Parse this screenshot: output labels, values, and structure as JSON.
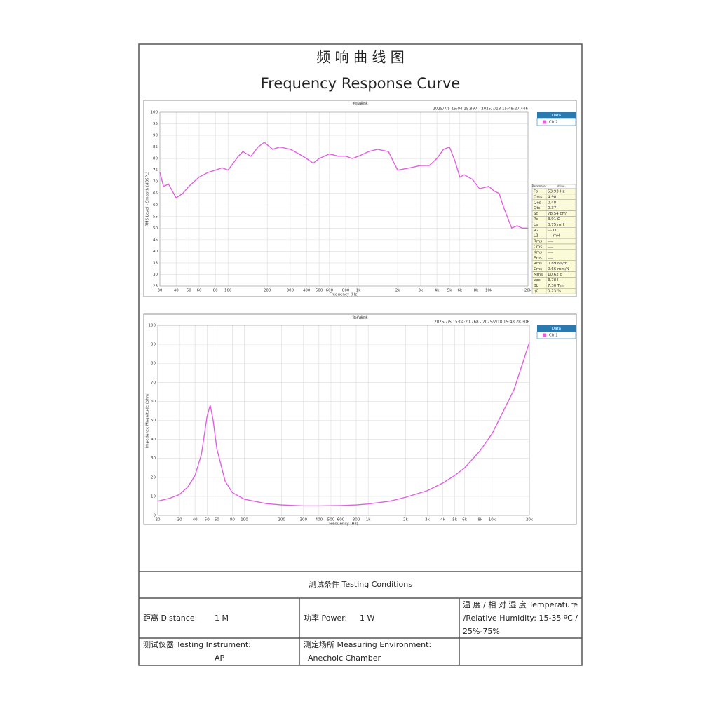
{
  "header": {
    "title_cn": "频 响 曲 线 图",
    "title_en": "Frequency Response Curve"
  },
  "chart_data": [
    {
      "type": "line",
      "title": "响应曲线",
      "timestamp": "2025/7/5 15:04:19.897 - 2025/7/18 15:48:27.446",
      "x_label": "Frequency (Hz)",
      "y_label": "RMS Level - Smooth (dBSPL)",
      "xscale": "log",
      "grid": true,
      "legend_title": "Data",
      "x": [
        30,
        32,
        35,
        40,
        45,
        50,
        60,
        70,
        80,
        90,
        100,
        120,
        130,
        150,
        170,
        190,
        220,
        250,
        300,
        350,
        400,
        450,
        500,
        600,
        700,
        800,
        900,
        1000,
        1200,
        1400,
        1700,
        2000,
        2500,
        3000,
        3500,
        4000,
        4500,
        5000,
        5500,
        6000,
        6500,
        7500,
        8500,
        10000,
        11000,
        12000,
        13000,
        15000,
        16500,
        18000,
        20000
      ],
      "series": [
        {
          "name": "Ch 2",
          "color": "#e060e0",
          "values": [
            74,
            68,
            69,
            63,
            65,
            68,
            72,
            74,
            75,
            76,
            75,
            81,
            83,
            81,
            85,
            87,
            84,
            85,
            84,
            82,
            80,
            78,
            80,
            82,
            81,
            81,
            80,
            81,
            83,
            84,
            83,
            75,
            76,
            77,
            77,
            80,
            84,
            85,
            79,
            72,
            73,
            71,
            67,
            68,
            66,
            65,
            59,
            50,
            51,
            50,
            50
          ]
        }
      ],
      "xlim": [
        30,
        20000
      ],
      "xticks": [
        30,
        40,
        50,
        60,
        80,
        100,
        200,
        300,
        400,
        500,
        600,
        800,
        {
          "value": 1000,
          "label": "1k"
        },
        {
          "value": 2000,
          "label": "2k"
        },
        {
          "value": 3000,
          "label": "3k"
        },
        {
          "value": 4000,
          "label": "4k"
        },
        {
          "value": 5000,
          "label": "5k"
        },
        {
          "value": 6000,
          "label": "6k"
        },
        {
          "value": 8000,
          "label": "8k"
        },
        {
          "value": 10000,
          "label": "10k"
        },
        {
          "value": 20000,
          "label": "20k"
        }
      ],
      "ylim": [
        25,
        100
      ],
      "yticks": [
        25,
        30,
        35,
        40,
        45,
        50,
        55,
        60,
        65,
        70,
        75,
        80,
        85,
        90,
        95,
        100
      ],
      "parameters": {
        "header": [
          "Parameter",
          "Value"
        ],
        "rows": [
          [
            "Fs",
            "53.93 Hz"
          ],
          [
            "Qms",
            "4.90"
          ],
          [
            "Qes",
            "0.40"
          ],
          [
            "Qts",
            "0.37"
          ],
          [
            "Sd",
            "78.54 cm²"
          ],
          [
            "Re",
            "3.91 Ω"
          ],
          [
            "Le",
            "0.75 mH"
          ],
          [
            "R2",
            "--- Ω"
          ],
          [
            "L2",
            "--- mH"
          ],
          [
            "Rms",
            "----"
          ],
          [
            "Cms",
            "----"
          ],
          [
            "Kms",
            "----"
          ],
          [
            "Ems",
            "----"
          ],
          [
            "Rms",
            "0.89 Ns/m"
          ],
          [
            "Cms",
            "0.66 mm/N"
          ],
          [
            "Mms",
            "10.62 g"
          ],
          [
            "Vas",
            "3.78 l"
          ],
          [
            "BL",
            "7.30 Tm"
          ],
          [
            "η0",
            "0.23 %"
          ]
        ]
      }
    },
    {
      "type": "line",
      "title": "阻抗曲线",
      "timestamp": "2025/7/5 15:04:20.768 - 2025/7/18 15:48:28.306",
      "x_label": "Frequency (Hz)",
      "y_label": "Impedance Magnitude (ohm)",
      "xscale": "log",
      "grid": true,
      "legend_title": "Data",
      "x": [
        20,
        25,
        30,
        35,
        40,
        45,
        50,
        53,
        56,
        60,
        70,
        80,
        100,
        150,
        200,
        300,
        400,
        600,
        800,
        1000,
        1500,
        2000,
        3000,
        4000,
        5000,
        6000,
        8000,
        10000,
        15000,
        20000
      ],
      "series": [
        {
          "name": "Ch 1",
          "color": "#e060e0",
          "values": [
            7.5,
            9,
            11,
            15,
            21,
            32,
            52,
            58,
            50,
            35,
            18,
            12,
            8.5,
            6.2,
            5.5,
            5.0,
            5.0,
            5.2,
            5.5,
            6,
            7.5,
            9.5,
            13,
            17,
            21,
            25,
            34,
            43,
            66,
            91
          ]
        }
      ],
      "xlim": [
        20,
        20000
      ],
      "xticks": [
        20,
        30,
        40,
        50,
        60,
        80,
        100,
        200,
        300,
        400,
        500,
        600,
        800,
        {
          "value": 1000,
          "label": "1k"
        },
        {
          "value": 2000,
          "label": "2k"
        },
        {
          "value": 3000,
          "label": "3k"
        },
        {
          "value": 4000,
          "label": "4k"
        },
        {
          "value": 5000,
          "label": "5k"
        },
        {
          "value": 6000,
          "label": "6k"
        },
        {
          "value": 8000,
          "label": "8k"
        },
        {
          "value": 10000,
          "label": "10k"
        },
        {
          "value": 20000,
          "label": "20k"
        }
      ],
      "ylim": [
        0,
        100
      ],
      "yticks": [
        0,
        10,
        20,
        30,
        40,
        50,
        60,
        70,
        80,
        90,
        100
      ]
    }
  ],
  "conditions": {
    "title": "测试条件    Testing    Conditions",
    "distance_label": "距离  Distance:",
    "distance_value": "1 M",
    "power_label": "功率  Power:",
    "power_value": "1 W",
    "temperature": [
      "温 度 / 相 对 湿 度    Temperature",
      "/Relative  Humidity:  15-35  ºC  /",
      "25%-75%"
    ],
    "instrument_label": "测试仪器  Testing Instrument:",
    "instrument_value": "AP",
    "environment_label": "测定场所 Measuring Environment:",
    "environment_value": "Anechoic Chamber"
  }
}
